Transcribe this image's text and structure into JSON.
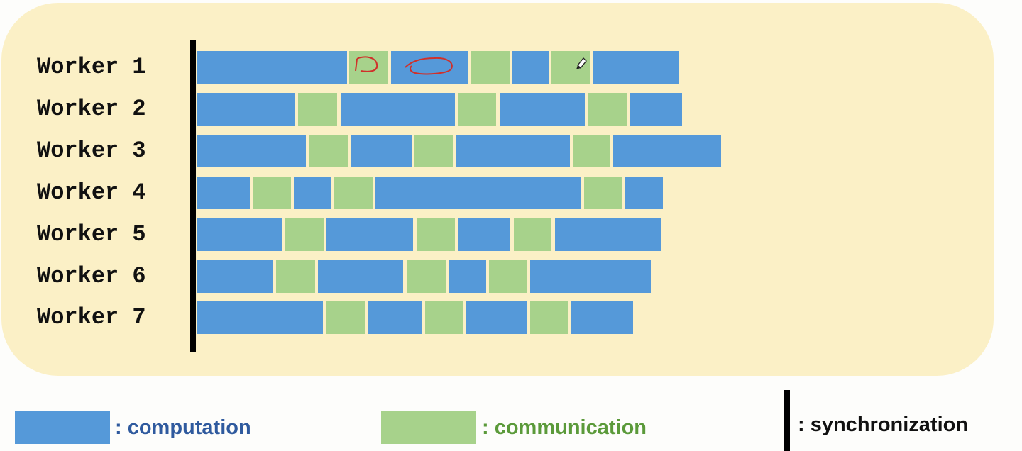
{
  "colors": {
    "computation": "#5599d9",
    "communication": "#a7d28b",
    "synchronization": "#000000",
    "panel_background": "#fbf0c6"
  },
  "workers": [
    {
      "label": "Worker 1",
      "segments": [
        {
          "type": "computation",
          "start": 0,
          "end": 212
        },
        {
          "type": "communication",
          "start": 215,
          "end": 270
        },
        {
          "type": "computation",
          "start": 274,
          "end": 383
        },
        {
          "type": "communication",
          "start": 386,
          "end": 441
        },
        {
          "type": "computation",
          "start": 445,
          "end": 496
        },
        {
          "type": "communication",
          "start": 500,
          "end": 555
        },
        {
          "type": "computation",
          "start": 559,
          "end": 680
        }
      ]
    },
    {
      "label": "Worker 2",
      "segments": [
        {
          "type": "computation",
          "start": 0,
          "end": 138
        },
        {
          "type": "communication",
          "start": 143,
          "end": 198
        },
        {
          "type": "computation",
          "start": 203,
          "end": 364
        },
        {
          "type": "communication",
          "start": 368,
          "end": 422
        },
        {
          "type": "computation",
          "start": 427,
          "end": 547
        },
        {
          "type": "communication",
          "start": 551,
          "end": 606
        },
        {
          "type": "computation",
          "start": 610,
          "end": 684
        }
      ]
    },
    {
      "label": "Worker 3",
      "segments": [
        {
          "type": "computation",
          "start": 0,
          "end": 154
        },
        {
          "type": "communication",
          "start": 158,
          "end": 213
        },
        {
          "type": "computation",
          "start": 217,
          "end": 303
        },
        {
          "type": "communication",
          "start": 307,
          "end": 361
        },
        {
          "type": "computation",
          "start": 365,
          "end": 526
        },
        {
          "type": "communication",
          "start": 530,
          "end": 583
        },
        {
          "type": "computation",
          "start": 587,
          "end": 739
        }
      ]
    },
    {
      "label": "Worker 4",
      "segments": [
        {
          "type": "computation",
          "start": 0,
          "end": 75
        },
        {
          "type": "communication",
          "start": 79,
          "end": 133
        },
        {
          "type": "computation",
          "start": 137,
          "end": 189
        },
        {
          "type": "communication",
          "start": 194,
          "end": 248
        },
        {
          "type": "computation",
          "start": 252,
          "end": 542
        },
        {
          "type": "communication",
          "start": 546,
          "end": 600
        },
        {
          "type": "computation",
          "start": 604,
          "end": 657
        }
      ]
    },
    {
      "label": "Worker 5",
      "segments": [
        {
          "type": "computation",
          "start": 0,
          "end": 121
        },
        {
          "type": "communication",
          "start": 125,
          "end": 179
        },
        {
          "type": "computation",
          "start": 183,
          "end": 305
        },
        {
          "type": "communication",
          "start": 310,
          "end": 364
        },
        {
          "type": "computation",
          "start": 368,
          "end": 442
        },
        {
          "type": "communication",
          "start": 447,
          "end": 500
        },
        {
          "type": "computation",
          "start": 505,
          "end": 654
        }
      ]
    },
    {
      "label": "Worker 6",
      "segments": [
        {
          "type": "computation",
          "start": 0,
          "end": 107
        },
        {
          "type": "communication",
          "start": 112,
          "end": 167
        },
        {
          "type": "computation",
          "start": 171,
          "end": 291
        },
        {
          "type": "communication",
          "start": 297,
          "end": 352
        },
        {
          "type": "computation",
          "start": 356,
          "end": 408
        },
        {
          "type": "communication",
          "start": 412,
          "end": 466
        },
        {
          "type": "computation",
          "start": 470,
          "end": 640
        }
      ]
    },
    {
      "label": "Worker 7",
      "segments": [
        {
          "type": "computation",
          "start": 0,
          "end": 178
        },
        {
          "type": "communication",
          "start": 183,
          "end": 237
        },
        {
          "type": "computation",
          "start": 242,
          "end": 317
        },
        {
          "type": "communication",
          "start": 322,
          "end": 376
        },
        {
          "type": "computation",
          "start": 380,
          "end": 466
        },
        {
          "type": "communication",
          "start": 470,
          "end": 524
        },
        {
          "type": "computation",
          "start": 528,
          "end": 615
        }
      ]
    }
  ],
  "legend": {
    "computation_label": ": computation",
    "communication_label": ": communication",
    "synchronization_label": ": synchronization",
    "computation_color": "#2f5a9e",
    "communication_color": "#5b9a3a",
    "synchronization_color": "#111111"
  }
}
